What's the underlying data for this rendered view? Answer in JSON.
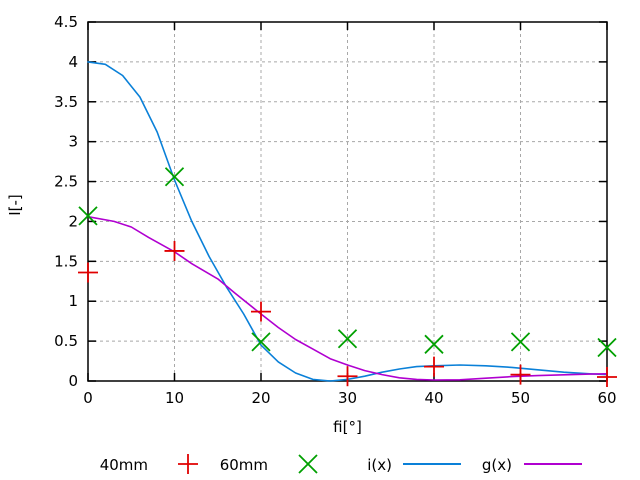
{
  "window": {
    "background": "#ffffff"
  },
  "chart_data": {
    "type": "line",
    "title": "",
    "xlabel": "fi[°]",
    "ylabel": "I[-]",
    "xlim": [
      0,
      60
    ],
    "ylim": [
      0,
      4.5
    ],
    "x_ticks": [
      0,
      10,
      20,
      30,
      40,
      50,
      60
    ],
    "y_ticks": [
      0,
      0.5,
      1,
      1.5,
      2,
      2.5,
      3,
      3.5,
      4,
      4.5
    ],
    "grid": true,
    "legend_position": "bottom",
    "colors": {
      "red_points": "#e00000",
      "green_points": "#00a000",
      "blue_line": "#0a80d8",
      "magenta_line": "#b000d0",
      "grid": "#a8a8a8",
      "axis": "#000000",
      "text": "#000000"
    },
    "series": [
      {
        "name": "40mm",
        "kind": "points",
        "marker": "plus",
        "color": "#e00000",
        "x": [
          0,
          10,
          20,
          30,
          40,
          50,
          60
        ],
        "y": [
          1.36,
          1.63,
          0.87,
          0.06,
          0.18,
          0.08,
          0.05
        ]
      },
      {
        "name": "60mm",
        "kind": "points",
        "marker": "cross",
        "color": "#00a000",
        "x": [
          0,
          10,
          20,
          30,
          40,
          50,
          60
        ],
        "y": [
          2.07,
          2.56,
          0.49,
          0.53,
          0.46,
          0.49,
          0.42
        ]
      },
      {
        "name": "i(x)",
        "kind": "line",
        "color": "#0a80d8",
        "points": [
          [
            0,
            4.0
          ],
          [
            2,
            3.97
          ],
          [
            4,
            3.83
          ],
          [
            6,
            3.56
          ],
          [
            8,
            3.12
          ],
          [
            10,
            2.52
          ],
          [
            12,
            2.0
          ],
          [
            14,
            1.56
          ],
          [
            16,
            1.18
          ],
          [
            18,
            0.84
          ],
          [
            20,
            0.45
          ],
          [
            22,
            0.24
          ],
          [
            24,
            0.1
          ],
          [
            26,
            0.02
          ],
          [
            28,
            0.0
          ],
          [
            30,
            0.02
          ],
          [
            32,
            0.06
          ],
          [
            34,
            0.11
          ],
          [
            36,
            0.15
          ],
          [
            38,
            0.18
          ],
          [
            40,
            0.19
          ],
          [
            43,
            0.2
          ],
          [
            46,
            0.19
          ],
          [
            49,
            0.17
          ],
          [
            52,
            0.14
          ],
          [
            55,
            0.11
          ],
          [
            58,
            0.09
          ],
          [
            60,
            0.08
          ]
        ]
      },
      {
        "name": "g(x)",
        "kind": "line",
        "color": "#b000d0",
        "points": [
          [
            0,
            2.06
          ],
          [
            3,
            2.0
          ],
          [
            5,
            1.93
          ],
          [
            7,
            1.8
          ],
          [
            10,
            1.62
          ],
          [
            12,
            1.47
          ],
          [
            15,
            1.28
          ],
          [
            17,
            1.1
          ],
          [
            20,
            0.84
          ],
          [
            22,
            0.67
          ],
          [
            24,
            0.52
          ],
          [
            26,
            0.4
          ],
          [
            28,
            0.28
          ],
          [
            30,
            0.2
          ],
          [
            32,
            0.13
          ],
          [
            34,
            0.08
          ],
          [
            36,
            0.04
          ],
          [
            38,
            0.02
          ],
          [
            40,
            0.012
          ],
          [
            43,
            0.015
          ],
          [
            46,
            0.035
          ],
          [
            49,
            0.055
          ],
          [
            52,
            0.068
          ],
          [
            55,
            0.078
          ],
          [
            58,
            0.086
          ],
          [
            60,
            0.09
          ]
        ]
      }
    ]
  }
}
